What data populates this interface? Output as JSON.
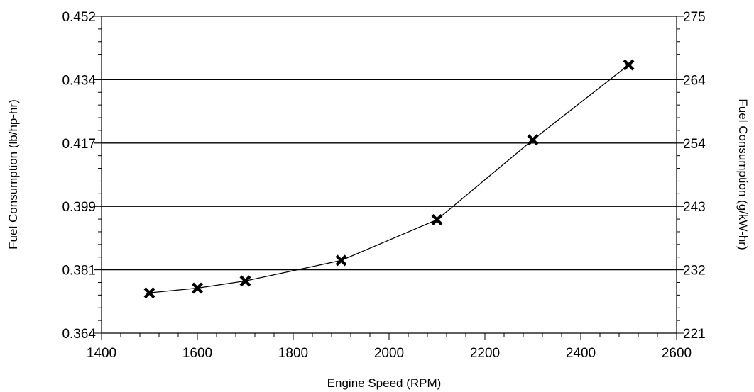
{
  "chart_data": {
    "type": "line",
    "xlabel": "Engine Speed (RPM)",
    "ylabel_left": "Fuel Consumption  (lb/hp-hr)",
    "ylabel_right": "Fuel Consumption  (g/kW-hr)",
    "xlim": [
      1400,
      2600
    ],
    "ylim_left": [
      0.364,
      0.452
    ],
    "ylim_right": [
      221,
      275
    ],
    "x_ticks": [
      "1400",
      "1600",
      "1800",
      "2000",
      "2200",
      "2400",
      "2600"
    ],
    "y_ticks_left": [
      "0.364",
      "0.381",
      "0.399",
      "0.417",
      "0.434",
      "0.452"
    ],
    "y_ticks_right": [
      "221",
      "232",
      "243",
      "254",
      "264",
      "275"
    ],
    "grid": "horizontal",
    "series": [
      {
        "marker": "x",
        "x": [
          1500,
          1600,
          1700,
          1900,
          2100,
          2300,
          2500
        ],
        "y": [
          0.3752,
          0.3765,
          0.3785,
          0.3842,
          0.3955,
          0.4177,
          0.4385
        ]
      }
    ]
  }
}
